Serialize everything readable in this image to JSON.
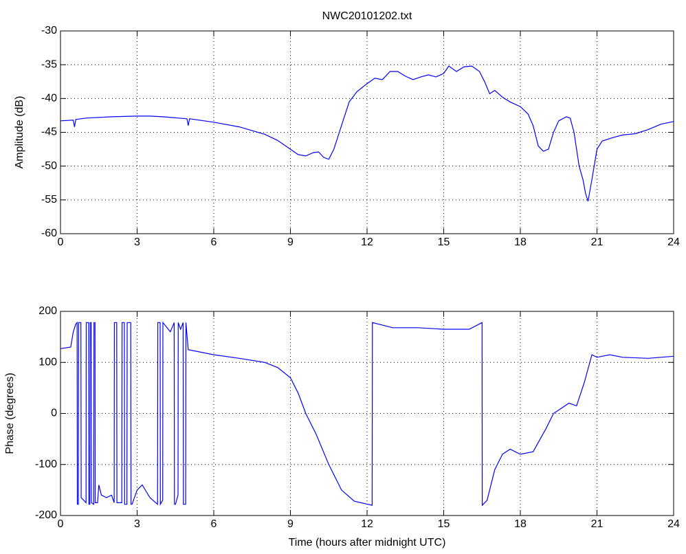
{
  "chart_data": [
    {
      "type": "line",
      "title": "NWC20101202.txt",
      "ylabel": "Amplitude (dB)",
      "color": "#0000ff",
      "grid": true,
      "xlim": [
        0,
        24
      ],
      "xticks": [
        0,
        3,
        6,
        9,
        12,
        15,
        18,
        21,
        24
      ],
      "ylim": [
        -60,
        -30
      ],
      "yticks": [
        -60,
        -55,
        -50,
        -45,
        -40,
        -35,
        -30
      ],
      "x": [
        0,
        0.5,
        0.55,
        0.6,
        1,
        2,
        3,
        3.5,
        4,
        4.95,
        5,
        5.05,
        6,
        7,
        8,
        8.5,
        9,
        9.3,
        9.6,
        9.9,
        10.1,
        10.3,
        10.5,
        10.7,
        11,
        11.3,
        11.6,
        12,
        12.3,
        12.6,
        12.9,
        13.2,
        13.5,
        13.8,
        14.1,
        14.4,
        14.7,
        15,
        15.2,
        15.5,
        15.8,
        16.1,
        16.4,
        16.6,
        16.8,
        17,
        17.3,
        17.6,
        18,
        18.3,
        18.5,
        18.7,
        18.9,
        19.1,
        19.3,
        19.5,
        19.8,
        19.95,
        20.1,
        20.3,
        20.45,
        20.55,
        20.65,
        20.8,
        21,
        21.2,
        21.6,
        22,
        22.5,
        23,
        23.5,
        24
      ],
      "values": [
        -43.3,
        -43.2,
        -44.2,
        -43.1,
        -42.9,
        -42.7,
        -42.6,
        -42.6,
        -42.7,
        -43,
        -44,
        -43,
        -43.5,
        -44.2,
        -45.3,
        -46.2,
        -47.5,
        -48.3,
        -48.5,
        -48,
        -47.9,
        -48.7,
        -49,
        -47.5,
        -44,
        -40.5,
        -39,
        -37.8,
        -37,
        -37.2,
        -36,
        -36,
        -36.7,
        -37.2,
        -36.8,
        -36.5,
        -36.8,
        -36.3,
        -35.2,
        -36,
        -35.3,
        -35.2,
        -36,
        -37.5,
        -39.3,
        -38.8,
        -39.8,
        -40.5,
        -41.2,
        -42.3,
        -44,
        -47,
        -47.8,
        -47.5,
        -45,
        -43.3,
        -42.7,
        -42.9,
        -45,
        -50,
        -52,
        -54,
        -55.2,
        -52,
        -47.5,
        -46.3,
        -45.8,
        -45.4,
        -45.2,
        -44.6,
        -43.8,
        -43.4
      ]
    },
    {
      "type": "line",
      "ylabel": "Phase (degrees)",
      "xlabel": "Time (hours after midnight UTC)",
      "color": "#0000ff",
      "grid": true,
      "xlim": [
        0,
        24
      ],
      "xticks": [
        0,
        3,
        6,
        9,
        12,
        15,
        18,
        21,
        24
      ],
      "ylim": [
        -200,
        200
      ],
      "yticks": [
        -200,
        -100,
        0,
        100,
        200
      ],
      "x": [
        0,
        0.4,
        0.5,
        0.6,
        0.65,
        0.66,
        0.7,
        0.71,
        0.8,
        0.81,
        1.0,
        1.01,
        1.1,
        1.11,
        1.15,
        1.16,
        1.2,
        1.21,
        1.3,
        1.31,
        1.35,
        1.36,
        1.45,
        1.5,
        1.6,
        1.8,
        2.0,
        2.1,
        2.11,
        2.2,
        2.21,
        2.4,
        2.41,
        2.5,
        2.51,
        2.6,
        2.61,
        2.75,
        2.76,
        2.8,
        3.0,
        3.2,
        3.5,
        3.8,
        3.81,
        3.9,
        3.91,
        4.0,
        4.01,
        4.3,
        4.45,
        4.46,
        4.5,
        4.6,
        4.61,
        4.7,
        4.8,
        4.81,
        4.9,
        4.91,
        5.0,
        6,
        7,
        8,
        8.5,
        9,
        9.3,
        9.6,
        10,
        10.5,
        11,
        11.5,
        12.2,
        12.21,
        13,
        14,
        15,
        16,
        16.5,
        16.51,
        16.7,
        17,
        17.3,
        17.6,
        18,
        18.5,
        19,
        19.3,
        19.6,
        19.9,
        20.2,
        20.5,
        20.8,
        21,
        21.5,
        22,
        23,
        24
      ],
      "values": [
        127,
        130,
        160,
        175,
        178,
        -178,
        -178,
        178,
        178,
        -165,
        -175,
        178,
        178,
        -178,
        -178,
        178,
        178,
        -175,
        -178,
        178,
        178,
        -175,
        -175,
        -140,
        -160,
        -165,
        -160,
        -175,
        178,
        178,
        -175,
        -175,
        178,
        178,
        -178,
        -178,
        178,
        178,
        -178,
        -178,
        -150,
        -140,
        -165,
        -178,
        178,
        178,
        -178,
        -170,
        178,
        160,
        178,
        -178,
        -178,
        -160,
        178,
        165,
        178,
        -178,
        -178,
        178,
        125,
        115,
        108,
        100,
        90,
        70,
        40,
        0,
        -40,
        -100,
        -150,
        -172,
        -180,
        178,
        168,
        168,
        165,
        165,
        178,
        -180,
        -170,
        -110,
        -80,
        -70,
        -80,
        -75,
        -30,
        0,
        10,
        20,
        15,
        60,
        115,
        110,
        115,
        110,
        108,
        112
      ]
    }
  ]
}
